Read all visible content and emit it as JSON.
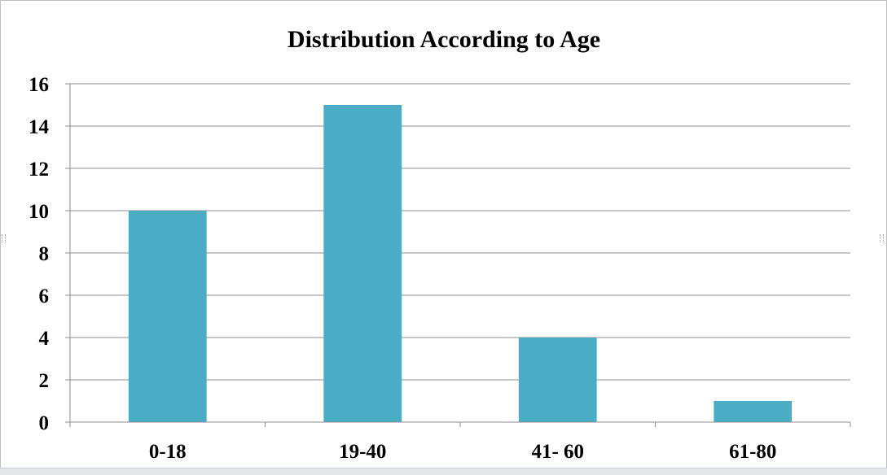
{
  "chart_data": {
    "type": "bar",
    "title": "Distribution According to Age",
    "xlabel": "",
    "ylabel": "",
    "categories": [
      "0-18",
      "19-40",
      "41- 60",
      "61-80"
    ],
    "values": [
      10,
      15,
      4,
      1
    ],
    "ylim": [
      0,
      16
    ],
    "yticks": [
      0,
      2,
      4,
      6,
      8,
      10,
      12,
      14,
      16
    ],
    "ytick_labels": [
      "0",
      "2",
      "4",
      "6",
      "8",
      "10",
      "12",
      "14",
      "16"
    ],
    "grid": true,
    "legend": "none",
    "bar_color": "#4bacc6"
  }
}
